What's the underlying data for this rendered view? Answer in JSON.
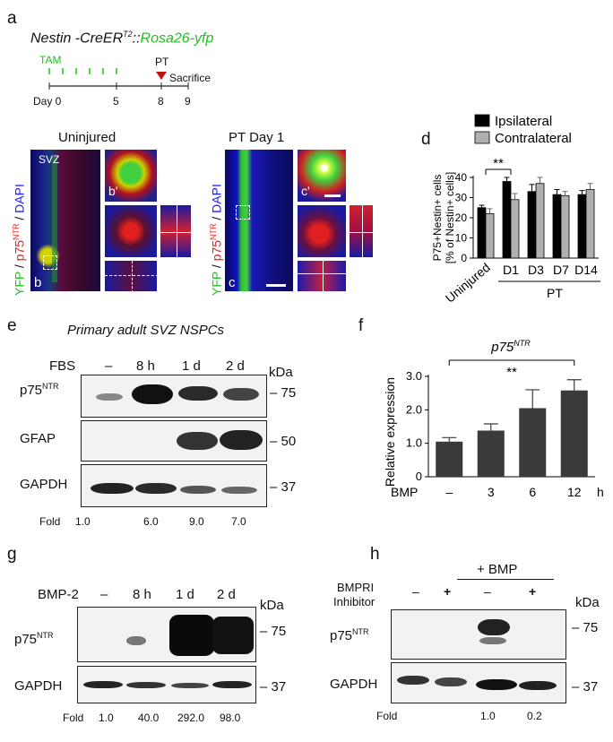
{
  "panel_a": {
    "letter": "a",
    "genotype_prefix": "Nestin -CreER",
    "genotype_sup": "T2",
    "genotype_sep": "::",
    "genotype_yfp": "Rosa26-yfp",
    "tam_label": "TAM",
    "pt_label": "PT",
    "sacrifice_label": "Sacrifice",
    "day_labels": [
      "Day 0",
      "5",
      "8",
      "9"
    ],
    "uninjured_title": "Uninjured",
    "pt_day1_title": "PT Day 1",
    "svz_label": "SVZ",
    "channel_yfp": "YFP",
    "channel_sep1": " / ",
    "channel_p75": "p75",
    "channel_ntr": "NTR",
    "channel_sep2": " / ",
    "channel_dapi": "DAPI",
    "inset_b": "b",
    "inset_b_prime": "b'",
    "inset_c": "c",
    "inset_c_prime": "c'",
    "colors": {
      "yfp": "#22c022",
      "p75": "#e02020",
      "dapi": "#1a1aff",
      "pt_marker": "#c01010"
    }
  },
  "panel_d": {
    "letter": "d",
    "chart_data": {
      "type": "bar",
      "ylabel_line1": "P75+Nestin+ cells",
      "ylabel_line2": "[% of Nestin+ cells]",
      "categories": [
        "Uninjured",
        "D1",
        "D3",
        "D7",
        "D14"
      ],
      "group_label": "PT",
      "series": [
        {
          "name": "Ipsilateral",
          "color": "#000000",
          "values": [
            25,
            38,
            33,
            31.5,
            31.5
          ],
          "errors": [
            1.2,
            2.0,
            3.5,
            2.5,
            2.0
          ]
        },
        {
          "name": "Contralateral",
          "color": "#b0b0b0",
          "values": [
            22,
            29,
            37,
            31,
            34
          ],
          "errors": [
            2.5,
            3.0,
            3.0,
            2.0,
            3.0
          ]
        }
      ],
      "ylim": [
        0,
        40
      ],
      "yticks": [
        "0",
        "10",
        "20",
        "30",
        "40"
      ],
      "significance": "**"
    }
  },
  "panel_e": {
    "letter": "e",
    "title": "Primary adult SVZ NSPCs",
    "treatment": "FBS",
    "lanes": [
      "–",
      "8 h",
      "1 d",
      "2 d"
    ],
    "kda_label": "kDa",
    "rows": [
      {
        "name": "p75",
        "sup": "NTR",
        "marker": "– 75"
      },
      {
        "name": "GFAP",
        "sup": "",
        "marker": "– 50"
      },
      {
        "name": "GAPDH",
        "sup": "",
        "marker": "– 37"
      }
    ],
    "fold_label": "Fold",
    "fold_values": [
      "1.0",
      "6.0",
      "9.0",
      "7.0"
    ]
  },
  "panel_f": {
    "letter": "f",
    "chart_data": {
      "type": "bar",
      "title": "p75",
      "title_sup": "NTR",
      "ylabel": "Relative expression",
      "xlabel": "BMP",
      "x_unit": "h",
      "categories": [
        "–",
        "3",
        "6",
        "12"
      ],
      "values": [
        1.05,
        1.38,
        2.05,
        2.58
      ],
      "errors": [
        0.12,
        0.2,
        0.55,
        0.32
      ],
      "bar_color": "#3a3a3a",
      "ylim": [
        0,
        3.0
      ],
      "yticks": [
        "0",
        "1.0",
        "2.0",
        "3.0"
      ],
      "significance": "**"
    }
  },
  "panel_g": {
    "letter": "g",
    "treatment": "BMP-2",
    "lanes": [
      "–",
      "8 h",
      "1 d",
      "2 d"
    ],
    "kda_label": "kDa",
    "rows": [
      {
        "name": "p75",
        "sup": "NTR",
        "marker": "– 75"
      },
      {
        "name": "GAPDH",
        "sup": "",
        "marker": "– 37"
      }
    ],
    "fold_label": "Fold",
    "fold_values": [
      "1.0",
      "40.0",
      "292.0",
      "98.0"
    ]
  },
  "panel_h": {
    "letter": "h",
    "bmp_label": "+ BMP",
    "inhibitor_line1": "BMPRI",
    "inhibitor_line2": "Inhibitor",
    "inhibitor_lanes": [
      "–",
      "+",
      "–",
      "+"
    ],
    "kda_label": "kDa",
    "rows": [
      {
        "name": "p75",
        "sup": "NTR",
        "marker": "– 75"
      },
      {
        "name": "GAPDH",
        "sup": "",
        "marker": "– 37"
      }
    ],
    "fold_label": "Fold",
    "fold_values": [
      "1.0",
      "0.2"
    ]
  }
}
